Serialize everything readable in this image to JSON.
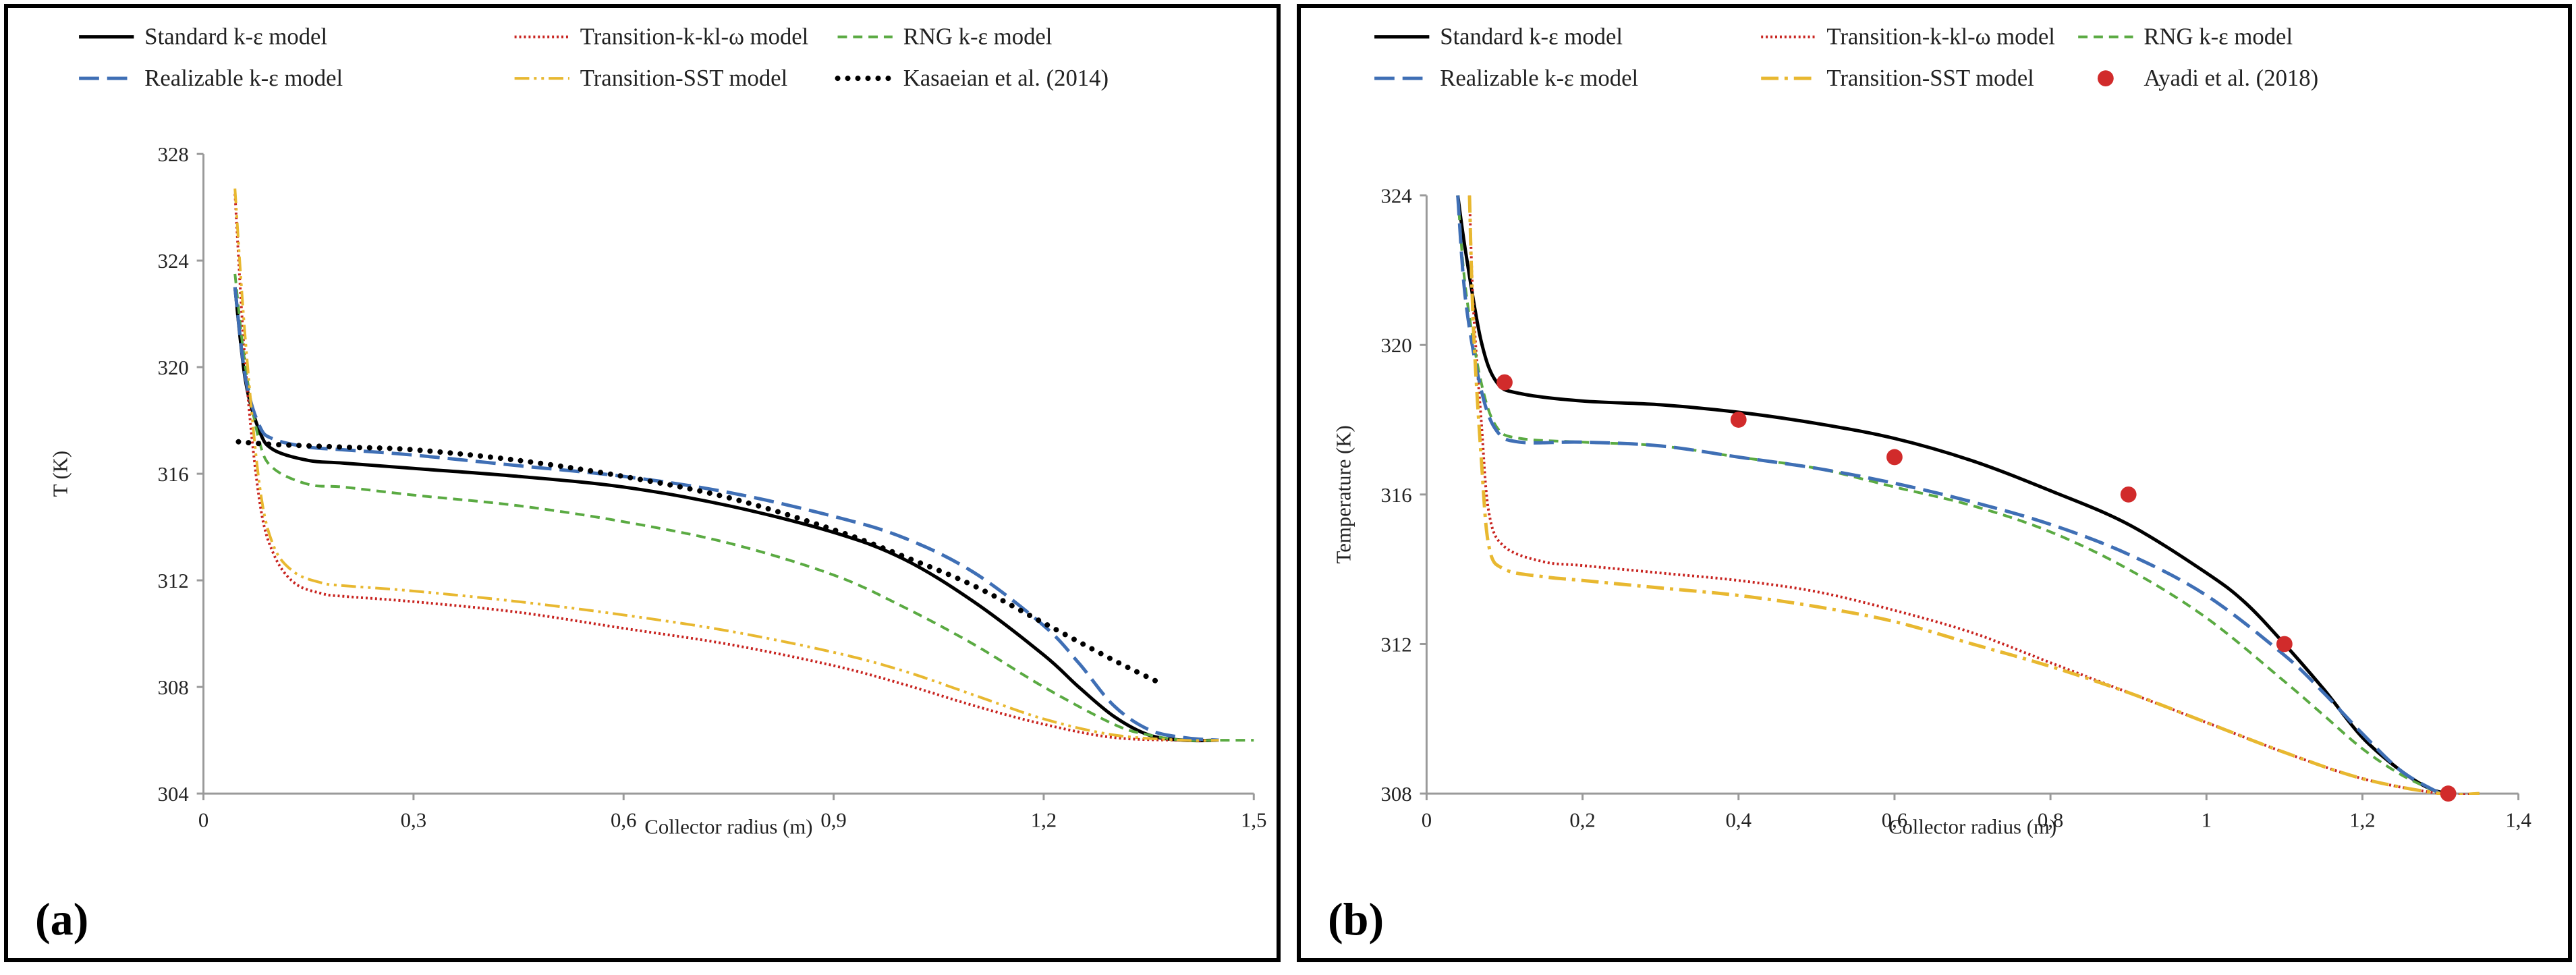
{
  "chart_data": [
    {
      "type": "line",
      "panel_label": "(a)",
      "xlabel": "Collector radius (m)",
      "ylabel": "T (K)",
      "xlim": [
        0,
        1.5
      ],
      "ylim": [
        304,
        328
      ],
      "xticks": [
        0,
        0.3,
        0.6,
        0.9,
        1.2,
        1.5
      ],
      "xtick_labels": [
        "0",
        "0,3",
        "0,6",
        "0,9",
        "1,2",
        "1,5"
      ],
      "yticks": [
        304,
        308,
        312,
        316,
        320,
        324,
        328
      ],
      "ytick_labels": [
        "304",
        "308",
        "312",
        "316",
        "320",
        "324",
        "328"
      ],
      "series": [
        {
          "name": "Standard k-ε model",
          "style": "solid",
          "color": "#000000",
          "x": [
            0.045,
            0.06,
            0.08,
            0.1,
            0.15,
            0.2,
            0.3,
            0.45,
            0.6,
            0.75,
            0.9,
            1.0,
            1.1,
            1.2,
            1.25,
            1.3,
            1.35,
            1.4,
            1.45
          ],
          "y": [
            323,
            319.5,
            317.6,
            316.9,
            316.5,
            316.4,
            316.2,
            315.9,
            315.5,
            314.8,
            313.8,
            312.8,
            311.2,
            309.2,
            308,
            306.9,
            306.2,
            306.0,
            306.0
          ]
        },
        {
          "name": "Transition-k-kl-ω model",
          "style": "dotted",
          "color": "#c8231f",
          "x": [
            0.045,
            0.06,
            0.08,
            0.1,
            0.13,
            0.17,
            0.2,
            0.3,
            0.45,
            0.6,
            0.75,
            0.9,
            1.0,
            1.1,
            1.2,
            1.3,
            1.4,
            1.45
          ],
          "y": [
            326.5,
            320,
            315,
            313,
            311.9,
            311.5,
            311.4,
            311.2,
            310.8,
            310.2,
            309.6,
            308.8,
            308.1,
            307.3,
            306.6,
            306.1,
            306.0,
            306.0
          ]
        },
        {
          "name": "RNG k-ε model",
          "style": "dashed",
          "color": "#5aaa42",
          "x": [
            0.045,
            0.06,
            0.08,
            0.1,
            0.15,
            0.2,
            0.3,
            0.45,
            0.6,
            0.75,
            0.9,
            1.0,
            1.1,
            1.2,
            1.3,
            1.35,
            1.4,
            1.45,
            1.5
          ],
          "y": [
            323.5,
            320,
            317.2,
            316.2,
            315.6,
            315.5,
            315.2,
            314.8,
            314.2,
            313.4,
            312.2,
            311.0,
            309.6,
            308.0,
            306.6,
            306.2,
            306.0,
            306.0,
            306.0
          ]
        },
        {
          "name": "Realizable k-ε model",
          "style": "longdash",
          "color": "#3f6fb5",
          "x": [
            0.045,
            0.06,
            0.08,
            0.1,
            0.15,
            0.2,
            0.3,
            0.45,
            0.6,
            0.75,
            0.9,
            1.0,
            1.1,
            1.2,
            1.25,
            1.3,
            1.35,
            1.4,
            1.45
          ],
          "y": [
            323,
            319.6,
            317.8,
            317.3,
            317.0,
            316.9,
            316.7,
            316.3,
            315.9,
            315.3,
            314.4,
            313.6,
            312.3,
            310.3,
            308.9,
            307.3,
            306.4,
            306.1,
            306.0
          ]
        },
        {
          "name": "Transition-SST model",
          "style": "dashdotdot",
          "color": "#e8b830",
          "x": [
            0.045,
            0.06,
            0.08,
            0.1,
            0.13,
            0.17,
            0.2,
            0.3,
            0.45,
            0.6,
            0.75,
            0.9,
            1.0,
            1.1,
            1.2,
            1.3,
            1.4,
            1.45
          ],
          "y": [
            326.7,
            321,
            315.6,
            313.3,
            312.3,
            311.9,
            311.8,
            311.6,
            311.2,
            310.7,
            310.1,
            309.3,
            308.6,
            307.7,
            306.8,
            306.2,
            306.0,
            306.0
          ]
        },
        {
          "name": "Kasaeian et al. (2014)",
          "style": "bolddots",
          "color": "#000000",
          "x": [
            0.05,
            0.1,
            0.2,
            0.3,
            0.45,
            0.6,
            0.75,
            0.9,
            1.0,
            1.1,
            1.2,
            1.3,
            1.37
          ],
          "y": [
            317.2,
            317.1,
            317.0,
            316.9,
            316.5,
            315.9,
            315.1,
            313.9,
            312.9,
            311.8,
            310.4,
            309.0,
            308.1
          ]
        }
      ],
      "legend_rows": [
        [
          "Standard k-ε model",
          "Transition-k-kl-ω model",
          "RNG k-ε model"
        ],
        [
          "Realizable k-ε model",
          "Transition-SST model",
          "Kasaeian et al. (2014)"
        ]
      ]
    },
    {
      "type": "line",
      "panel_label": "(b)",
      "xlabel": "Collector radius (m)",
      "ylabel": "Temperature (K)",
      "xlim": [
        0,
        1.4
      ],
      "ylim": [
        308,
        324
      ],
      "xticks": [
        0,
        0.2,
        0.4,
        0.6,
        0.8,
        1.0,
        1.2,
        1.4
      ],
      "xtick_labels": [
        "0",
        "0,2",
        "0,4",
        "0,6",
        "0,8",
        "1",
        "1,2",
        "1,4"
      ],
      "yticks": [
        308,
        312,
        316,
        320,
        324
      ],
      "ytick_labels": [
        "308",
        "312",
        "316",
        "320",
        "324"
      ],
      "series": [
        {
          "name": "Standard k-ε model",
          "style": "solid",
          "color": "#000000",
          "x": [
            0.04,
            0.05,
            0.07,
            0.09,
            0.12,
            0.2,
            0.3,
            0.4,
            0.5,
            0.6,
            0.7,
            0.8,
            0.9,
            1.0,
            1.05,
            1.1,
            1.15,
            1.2,
            1.25,
            1.29,
            1.32
          ],
          "y": [
            324,
            322.5,
            320.1,
            319.0,
            318.7,
            318.5,
            318.4,
            318.2,
            317.9,
            317.5,
            316.9,
            316.1,
            315.2,
            313.9,
            313.1,
            312.0,
            310.8,
            309.5,
            308.6,
            308.1,
            308.0
          ]
        },
        {
          "name": "Transition-k-kl-ω model",
          "style": "dotted",
          "color": "#c8231f",
          "x": [
            0.055,
            0.06,
            0.07,
            0.08,
            0.1,
            0.15,
            0.2,
            0.3,
            0.4,
            0.5,
            0.6,
            0.7,
            0.8,
            0.9,
            1.0,
            1.1,
            1.2,
            1.3,
            1.35
          ],
          "y": [
            324,
            321,
            318,
            315.5,
            314.6,
            314.2,
            314.1,
            313.9,
            313.7,
            313.4,
            312.9,
            312.3,
            311.5,
            310.7,
            309.9,
            309.1,
            308.4,
            308.0,
            308.0
          ]
        },
        {
          "name": "RNG k-ε model",
          "style": "dashed",
          "color": "#5aaa42",
          "x": [
            0.04,
            0.05,
            0.07,
            0.09,
            0.12,
            0.2,
            0.3,
            0.4,
            0.5,
            0.6,
            0.7,
            0.8,
            0.9,
            1.0,
            1.1,
            1.15,
            1.2,
            1.25,
            1.3
          ],
          "y": [
            324,
            321.5,
            319.0,
            317.8,
            317.5,
            317.4,
            317.3,
            317.0,
            316.7,
            316.2,
            315.7,
            315.0,
            314.0,
            312.7,
            311.0,
            310.1,
            309.2,
            308.5,
            308.0
          ]
        },
        {
          "name": "Realizable k-ε model",
          "style": "longdash",
          "color": "#3f6fb5",
          "x": [
            0.04,
            0.05,
            0.07,
            0.09,
            0.12,
            0.2,
            0.3,
            0.4,
            0.5,
            0.6,
            0.7,
            0.8,
            0.9,
            1.0,
            1.1,
            1.15,
            1.2,
            1.25,
            1.3
          ],
          "y": [
            324,
            321.2,
            318.8,
            317.7,
            317.4,
            317.4,
            317.3,
            317.0,
            316.7,
            316.3,
            315.8,
            315.2,
            314.4,
            313.3,
            311.7,
            310.7,
            309.6,
            308.6,
            308.0
          ]
        },
        {
          "name": "Transition-SST model",
          "style": "dashdot",
          "color": "#e8b830",
          "x": [
            0.055,
            0.06,
            0.07,
            0.08,
            0.1,
            0.15,
            0.2,
            0.3,
            0.4,
            0.5,
            0.6,
            0.7,
            0.8,
            0.9,
            1.0,
            1.1,
            1.2,
            1.3,
            1.35
          ],
          "y": [
            324,
            320.5,
            317,
            314.6,
            314.0,
            313.8,
            313.7,
            313.5,
            313.3,
            313.0,
            312.6,
            312.0,
            311.4,
            310.7,
            309.9,
            309.1,
            308.4,
            308.0,
            308.0
          ]
        },
        {
          "name": "Ayadi et al. (2018)",
          "style": "markers",
          "color": "#d12b2b",
          "x": [
            0.1,
            0.4,
            0.6,
            0.9,
            1.1,
            1.31
          ],
          "y": [
            319.0,
            318.0,
            317.0,
            316.0,
            312.0,
            308.0
          ]
        }
      ],
      "legend_rows": [
        [
          "Standard k-ε model",
          "Transition-k-kl-ω model",
          "RNG k-ε model"
        ],
        [
          "Realizable k-ε model",
          "Transition-SST model",
          "Ayadi et al. (2018)"
        ]
      ]
    }
  ]
}
